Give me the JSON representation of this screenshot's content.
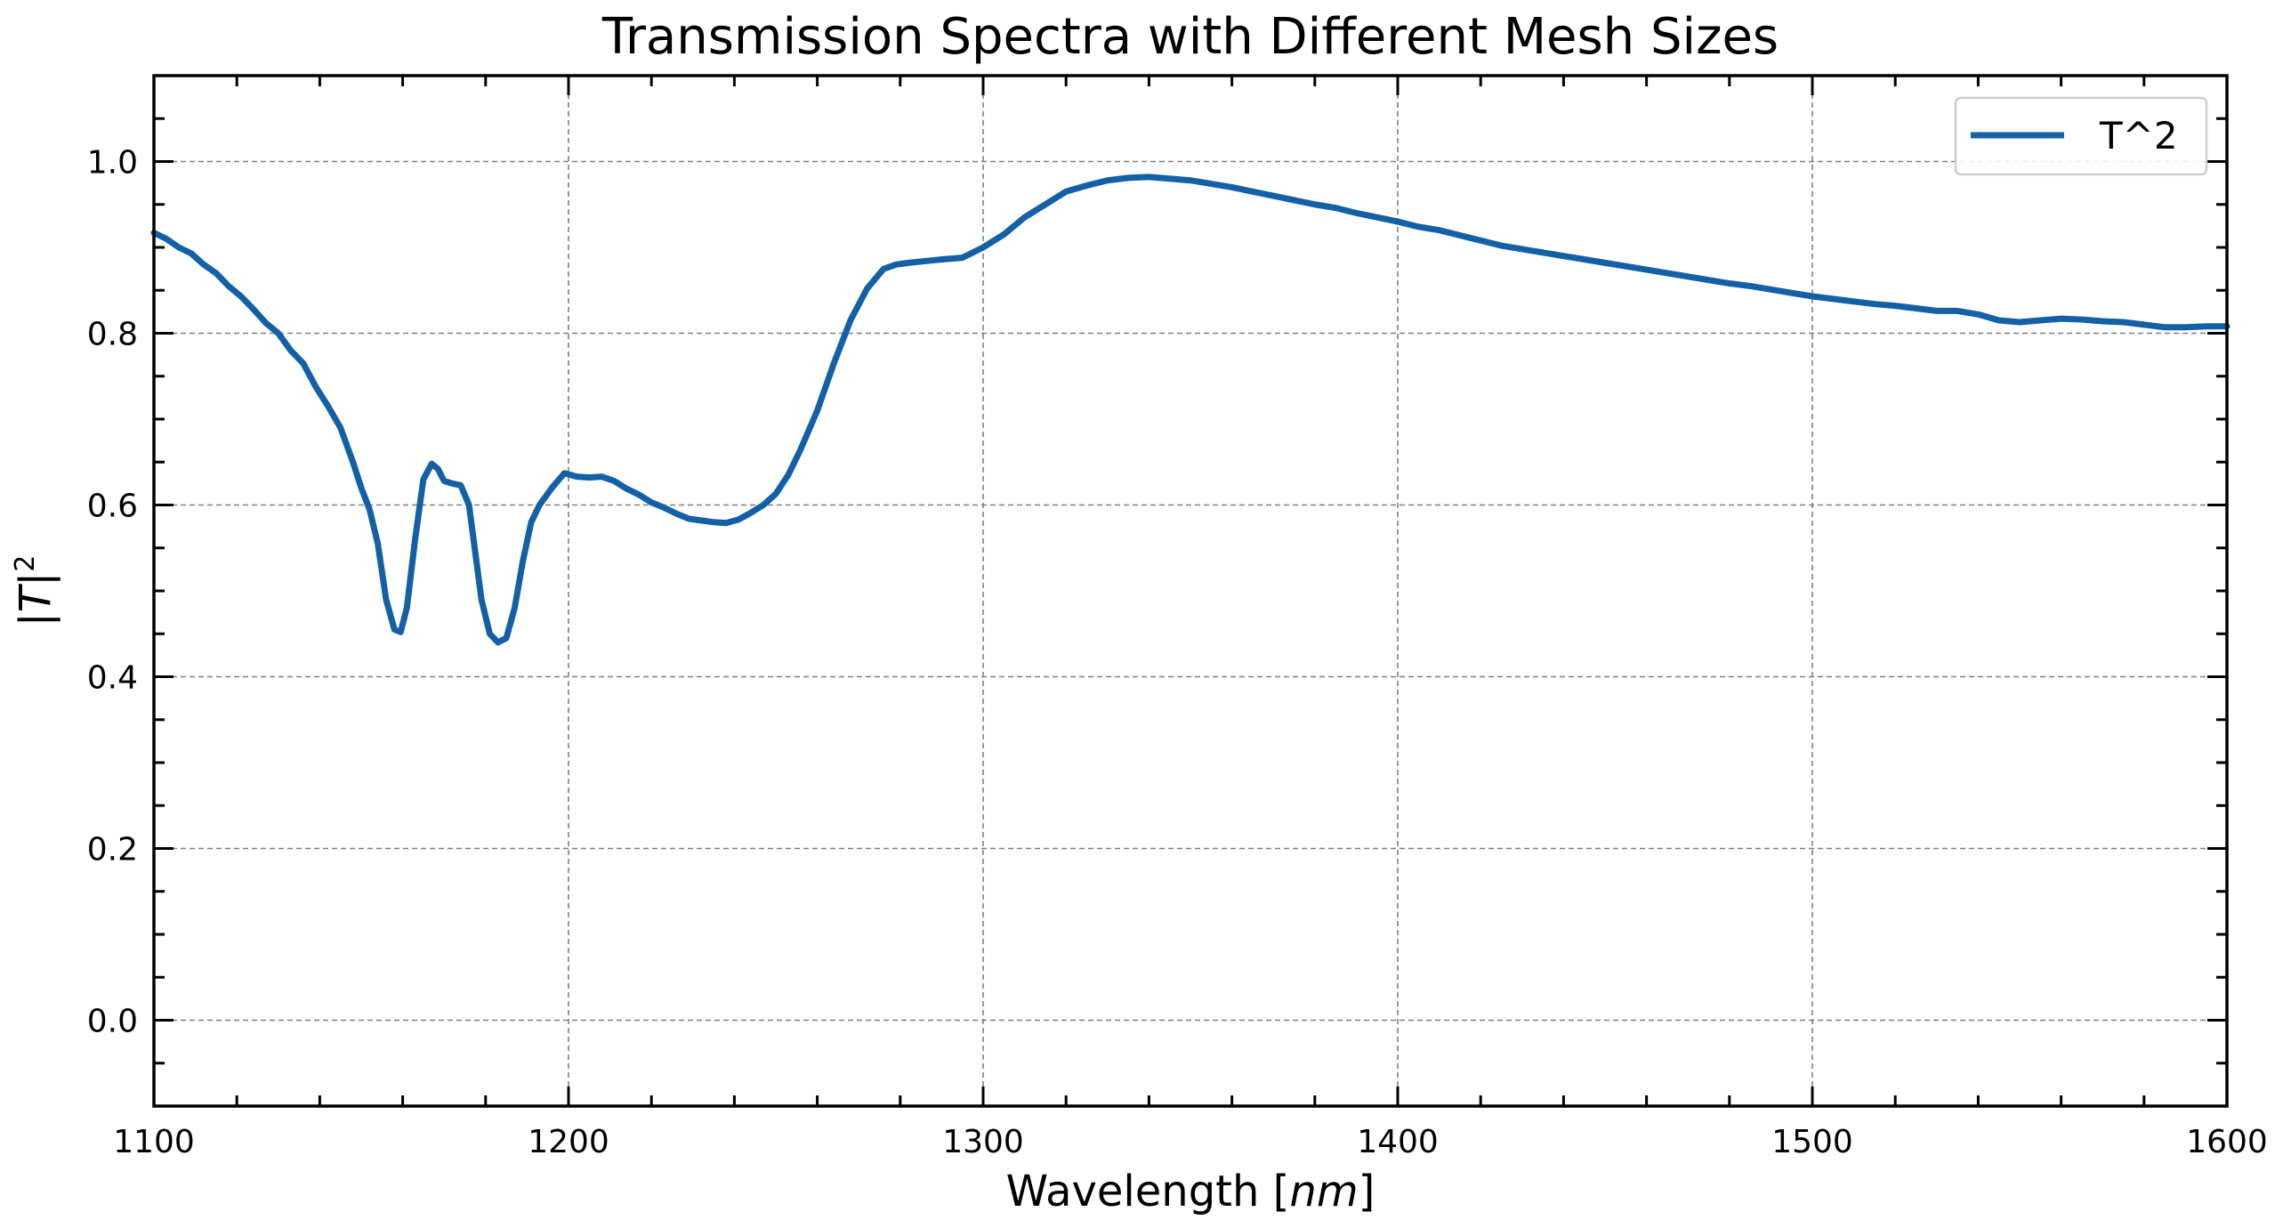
{
  "chart_data": {
    "type": "line",
    "title": "Transmission Spectra with Different Mesh Sizes",
    "xlabel": {
      "prefix": "Wavelength [",
      "italic": "nm",
      "suffix": "]"
    },
    "ylabel": {
      "prefix": "|",
      "italic": "T",
      "suffix": "|",
      "sup": "2"
    },
    "xlim": [
      1100,
      1600
    ],
    "ylim": [
      -0.1,
      1.1
    ],
    "xticks": [
      1100,
      1200,
      1300,
      1400,
      1500,
      1600
    ],
    "xtick_labels": [
      "1100",
      "1200",
      "1300",
      "1400",
      "1500",
      "1600"
    ],
    "yticks": [
      0.0,
      0.2,
      0.4,
      0.6,
      0.8,
      1.0
    ],
    "ytick_labels": [
      "0.0",
      "0.2",
      "0.4",
      "0.6",
      "0.8",
      "1.0"
    ],
    "grid": true,
    "legend_position": "top-right",
    "series": [
      {
        "name": "T^2",
        "color": "#1360a7",
        "x": [
          1100,
          1103,
          1106,
          1109,
          1112,
          1115,
          1118,
          1121,
          1124,
          1127,
          1130,
          1133,
          1136,
          1139,
          1142,
          1145,
          1148,
          1150,
          1152,
          1154,
          1156,
          1158,
          1159.5,
          1161,
          1163,
          1165,
          1167,
          1168.5,
          1170,
          1172,
          1174,
          1176,
          1177.5,
          1179,
          1181,
          1183,
          1185,
          1187,
          1189,
          1191,
          1193,
          1196,
          1199,
          1202,
          1205,
          1208,
          1211,
          1214,
          1217,
          1220,
          1223,
          1226,
          1229,
          1232,
          1235,
          1238,
          1241,
          1244,
          1247,
          1250,
          1253,
          1256,
          1260,
          1264,
          1268,
          1272,
          1276,
          1279,
          1282,
          1286,
          1290,
          1295,
          1300,
          1305,
          1310,
          1315,
          1320,
          1325,
          1330,
          1335,
          1340,
          1345,
          1350,
          1355,
          1360,
          1365,
          1370,
          1375,
          1380,
          1385,
          1390,
          1395,
          1400,
          1405,
          1410,
          1415,
          1420,
          1425,
          1430,
          1435,
          1440,
          1445,
          1450,
          1455,
          1460,
          1465,
          1470,
          1475,
          1480,
          1485,
          1490,
          1495,
          1500,
          1505,
          1510,
          1515,
          1520,
          1525,
          1530,
          1535,
          1540,
          1545,
          1550,
          1555,
          1560,
          1565,
          1570,
          1575,
          1580,
          1585,
          1590,
          1595,
          1600
        ],
        "y": [
          0.917,
          0.91,
          0.9,
          0.893,
          0.88,
          0.87,
          0.855,
          0.843,
          0.828,
          0.812,
          0.8,
          0.78,
          0.765,
          0.738,
          0.715,
          0.69,
          0.65,
          0.62,
          0.595,
          0.555,
          0.49,
          0.455,
          0.452,
          0.48,
          0.56,
          0.63,
          0.648,
          0.642,
          0.628,
          0.625,
          0.623,
          0.6,
          0.545,
          0.49,
          0.45,
          0.44,
          0.445,
          0.48,
          0.535,
          0.58,
          0.6,
          0.62,
          0.637,
          0.633,
          0.632,
          0.633,
          0.628,
          0.619,
          0.612,
          0.603,
          0.597,
          0.59,
          0.584,
          0.582,
          0.58,
          0.579,
          0.583,
          0.591,
          0.6,
          0.613,
          0.635,
          0.665,
          0.71,
          0.765,
          0.815,
          0.852,
          0.875,
          0.88,
          0.882,
          0.884,
          0.886,
          0.888,
          0.9,
          0.915,
          0.935,
          0.95,
          0.965,
          0.972,
          0.978,
          0.981,
          0.982,
          0.98,
          0.978,
          0.974,
          0.97,
          0.965,
          0.96,
          0.955,
          0.95,
          0.946,
          0.94,
          0.935,
          0.93,
          0.924,
          0.92,
          0.914,
          0.908,
          0.902,
          0.898,
          0.894,
          0.89,
          0.886,
          0.882,
          0.878,
          0.874,
          0.87,
          0.866,
          0.862,
          0.858,
          0.855,
          0.851,
          0.847,
          0.843,
          0.84,
          0.837,
          0.834,
          0.832,
          0.829,
          0.826,
          0.826,
          0.822,
          0.815,
          0.813,
          0.815,
          0.817,
          0.816,
          0.814,
          0.813,
          0.81,
          0.807,
          0.807,
          0.808,
          0.808
        ]
      }
    ]
  }
}
